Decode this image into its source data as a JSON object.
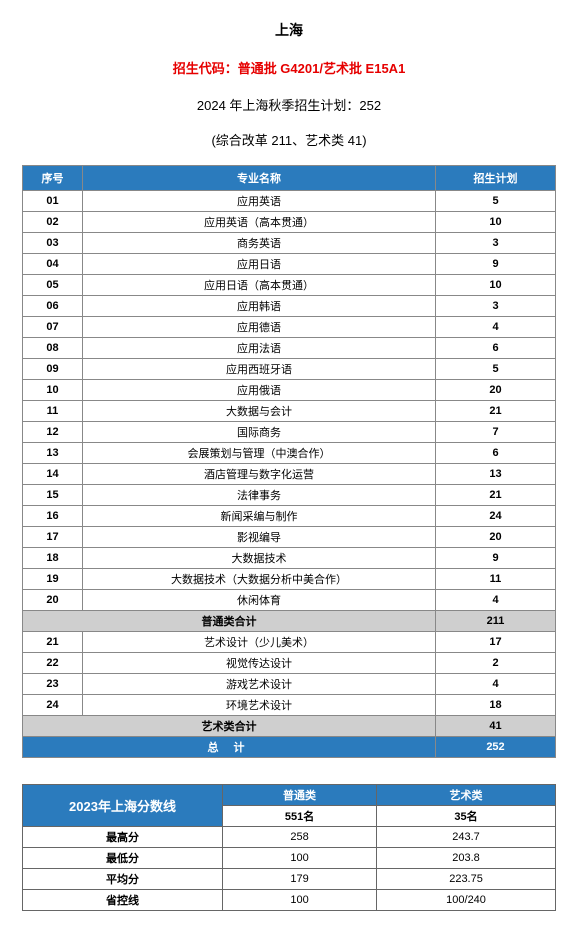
{
  "header": {
    "title": "上海",
    "code_line": "招生代码：普通批 G4201/艺术批 E15A1",
    "plan_line": "2024 年上海秋季招生计划：252",
    "sub_line": "(综合改革 211、艺术类 41)"
  },
  "main_table": {
    "columns": [
      "序号",
      "专业名称",
      "招生计划"
    ],
    "col_widths": [
      "60px",
      "auto",
      "120px"
    ],
    "rows": [
      {
        "idx": "01",
        "name": "应用英语",
        "count": "5"
      },
      {
        "idx": "02",
        "name": "应用英语（高本贯通）",
        "count": "10"
      },
      {
        "idx": "03",
        "name": "商务英语",
        "count": "3"
      },
      {
        "idx": "04",
        "name": "应用日语",
        "count": "9"
      },
      {
        "idx": "05",
        "name": "应用日语（高本贯通）",
        "count": "10"
      },
      {
        "idx": "06",
        "name": "应用韩语",
        "count": "3"
      },
      {
        "idx": "07",
        "name": "应用德语",
        "count": "4"
      },
      {
        "idx": "08",
        "name": "应用法语",
        "count": "6"
      },
      {
        "idx": "09",
        "name": "应用西班牙语",
        "count": "5"
      },
      {
        "idx": "10",
        "name": "应用俄语",
        "count": "20"
      },
      {
        "idx": "11",
        "name": "大数据与会计",
        "count": "21"
      },
      {
        "idx": "12",
        "name": "国际商务",
        "count": "7"
      },
      {
        "idx": "13",
        "name": "会展策划与管理（中澳合作）",
        "count": "6"
      },
      {
        "idx": "14",
        "name": "酒店管理与数字化运营",
        "count": "13"
      },
      {
        "idx": "15",
        "name": "法律事务",
        "count": "21"
      },
      {
        "idx": "16",
        "name": "新闻采编与制作",
        "count": "24"
      },
      {
        "idx": "17",
        "name": "影视编导",
        "count": "20"
      },
      {
        "idx": "18",
        "name": "大数据技术",
        "count": "9"
      },
      {
        "idx": "19",
        "name": "大数据技术（大数据分析中美合作）",
        "count": "11"
      },
      {
        "idx": "20",
        "name": "休闲体育",
        "count": "4"
      }
    ],
    "subtotal1": {
      "name": "普通类合计",
      "count": "211"
    },
    "art_rows": [
      {
        "idx": "21",
        "name": "艺术设计（少儿美术）",
        "count": "17"
      },
      {
        "idx": "22",
        "name": "视觉传达设计",
        "count": "2"
      },
      {
        "idx": "23",
        "name": "游戏艺术设计",
        "count": "4"
      },
      {
        "idx": "24",
        "name": "环境艺术设计",
        "count": "18"
      }
    ],
    "subtotal2": {
      "name": "艺术类合计",
      "count": "41"
    },
    "total": {
      "name": "总    计",
      "count": "252"
    }
  },
  "score_table": {
    "title": "2023年上海分数线",
    "cat1": "普通类",
    "cat2": "艺术类",
    "rank1": "551名",
    "rank2": "35名",
    "rows": [
      {
        "label": "最高分",
        "v1": "258",
        "v2": "243.7"
      },
      {
        "label": "最低分",
        "v1": "100",
        "v2": "203.8"
      },
      {
        "label": "平均分",
        "v1": "179",
        "v2": "223.75"
      },
      {
        "label": "省控线",
        "v1": "100",
        "v2": "100/240"
      }
    ]
  },
  "colors": {
    "header_bg": "#2b7bbd",
    "header_fg": "#ffffff",
    "subtotal_bg": "#cfcfcf",
    "accent_red": "#e60000",
    "border": "#888888"
  }
}
